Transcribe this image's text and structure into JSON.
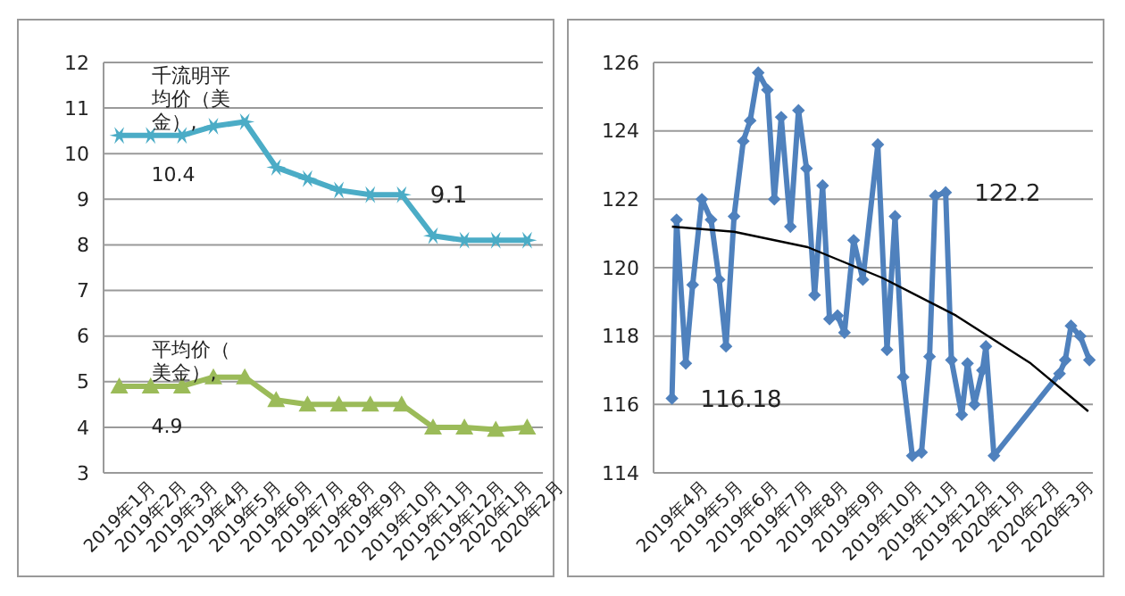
{
  "chart_data": [
    {
      "type": "line",
      "categories": [
        "2019年1月",
        "2019年2月",
        "2019年3月",
        "2019年4月",
        "2019年5月",
        "2019年6月",
        "2019年7月",
        "2019年8月",
        "2019年9月",
        "2019年10月",
        "2019年11月",
        "2019年12月",
        "2020年1月",
        "2020年2月"
      ],
      "series": [
        {
          "name": "千流明平均价（美金）,",
          "color": "#4bacc6",
          "marker": "cross",
          "values": [
            10.4,
            10.4,
            10.4,
            10.6,
            10.7,
            9.7,
            9.45,
            9.2,
            9.1,
            9.1,
            8.2,
            8.1,
            8.1,
            8.1
          ]
        },
        {
          "name": "平均价（美金）,",
          "color": "#9bbb59",
          "marker": "triangle",
          "values": [
            4.9,
            4.9,
            4.9,
            5.1,
            5.1,
            4.6,
            4.5,
            4.5,
            4.5,
            4.5,
            4.0,
            4.0,
            3.95,
            4.0
          ]
        }
      ],
      "ylim": [
        3,
        12
      ],
      "yticks": [
        3,
        4,
        5,
        6,
        7,
        8,
        9,
        10,
        11,
        12
      ],
      "grid": "y",
      "legend": false,
      "annotations": [
        {
          "text": "10.4",
          "x": "2019年1月",
          "y": 10.4
        },
        {
          "text": "9.1",
          "x": "2019年10月",
          "y": 9.1
        },
        {
          "text": "4.9",
          "x": "2019年1月",
          "y": 4.9
        }
      ]
    },
    {
      "type": "line",
      "xlim": [
        "2019-03-16",
        "2020-04-01"
      ],
      "xticks": [
        {
          "value": "2019-04",
          "label": "2019年4月"
        },
        {
          "value": "2019-05",
          "label": "2019年5月"
        },
        {
          "value": "2019-06",
          "label": "2019年6月"
        },
        {
          "value": "2019-07",
          "label": "2019年7月"
        },
        {
          "value": "2019-08",
          "label": "2019年8月"
        },
        {
          "value": "2019-09",
          "label": "2019年9月"
        },
        {
          "value": "2019-10",
          "label": "2019年10月"
        },
        {
          "value": "2019-11",
          "label": "2019年11月"
        },
        {
          "value": "2019-12",
          "label": "2019年12月"
        },
        {
          "value": "2020-01",
          "label": "2020年1月"
        },
        {
          "value": "2020-02",
          "label": "2020年2月"
        },
        {
          "value": "2020-03",
          "label": "2020年3月"
        }
      ],
      "ylim": [
        114,
        126
      ],
      "yticks": [
        114,
        116,
        118,
        120,
        122,
        124,
        126
      ],
      "grid": "y",
      "legend": false,
      "series": [
        {
          "color": "#4f81bd",
          "marker": "diamond",
          "x": [
            "2019-04-01",
            "2019-04-05",
            "2019-04-13",
            "2019-04-19",
            "2019-04-27",
            "2019-05-05",
            "2019-05-12",
            "2019-05-18",
            "2019-05-25",
            "2019-06-02",
            "2019-06-08",
            "2019-06-15",
            "2019-06-23",
            "2019-06-29",
            "2019-07-05",
            "2019-07-13",
            "2019-07-20",
            "2019-07-27",
            "2019-08-03",
            "2019-08-10",
            "2019-08-16",
            "2019-08-23",
            "2019-08-29",
            "2019-09-06",
            "2019-09-14",
            "2019-09-27",
            "2019-10-05",
            "2019-10-12",
            "2019-10-19",
            "2019-10-27",
            "2019-11-04",
            "2019-11-11",
            "2019-11-16",
            "2019-11-25",
            "2019-11-30",
            "2019-12-09",
            "2019-12-14",
            "2019-12-20",
            "2019-12-27",
            "2019-12-30",
            "2020-01-06",
            "2020-03-03",
            "2020-03-08",
            "2020-03-13",
            "2020-03-21",
            "2020-03-29"
          ],
          "values": [
            116.18,
            121.4,
            117.2,
            119.5,
            122.0,
            121.4,
            119.65,
            117.7,
            121.5,
            123.7,
            124.3,
            125.7,
            125.2,
            122.0,
            124.4,
            121.2,
            124.6,
            122.9,
            119.2,
            122.4,
            118.5,
            118.6,
            118.1,
            120.8,
            119.65,
            123.6,
            117.6,
            121.5,
            116.8,
            114.5,
            114.6,
            117.4,
            122.1,
            122.2,
            117.3,
            115.7,
            117.2,
            116.0,
            117.0,
            117.7,
            114.5,
            116.9,
            117.3,
            118.3,
            118.0,
            117.3
          ]
        },
        {
          "type": "line",
          "color": "#000000",
          "marker": "none",
          "x": [
            "2019-04-01",
            "2019-05-25",
            "2019-07-28",
            "2019-10-01",
            "2019-12-04",
            "2020-02-07",
            "2020-03-28"
          ],
          "values": [
            121.2,
            121.05,
            120.6,
            119.7,
            118.6,
            117.2,
            115.8
          ]
        }
      ],
      "annotations": [
        {
          "text": "116.18",
          "x": "2019-04-01",
          "y": 116.18
        },
        {
          "text": "122.2",
          "x": "2019-11-25",
          "y": 122.2
        }
      ]
    }
  ]
}
